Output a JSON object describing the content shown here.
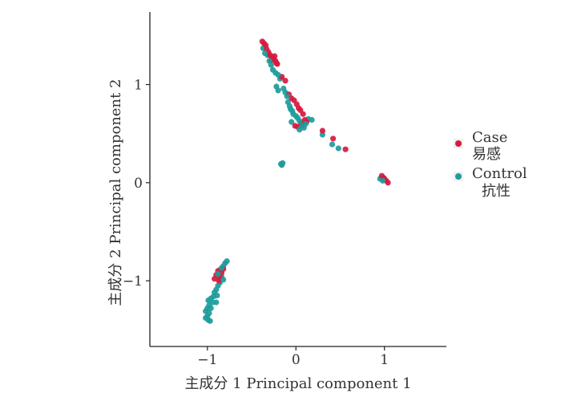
{
  "chart_data": {
    "type": "scatter",
    "xlabel": "主成分 1 Principal component 1",
    "ylabel": "主成分 2 Principal component 2",
    "xlim": [
      -1.65,
      1.7
    ],
    "ylim": [
      -1.67,
      1.74
    ],
    "x_ticks": [
      -1,
      0,
      1
    ],
    "y_ticks": [
      -1,
      0,
      1
    ],
    "x_tick_labels": [
      "−1",
      "0",
      "1"
    ],
    "y_tick_labels": [
      "−1",
      "0",
      "1"
    ],
    "grid": false,
    "legend_position": "right",
    "series": [
      {
        "name": "Case 易感",
        "legend_lines": [
          "Case",
          "易感"
        ],
        "color": "#d7193f",
        "points": [
          [
            -0.38,
            1.44
          ],
          [
            -0.36,
            1.42
          ],
          [
            -0.34,
            1.4
          ],
          [
            -0.33,
            1.36
          ],
          [
            -0.31,
            1.33
          ],
          [
            -0.29,
            1.3
          ],
          [
            -0.27,
            1.28
          ],
          [
            -0.25,
            1.26
          ],
          [
            -0.23,
            1.24
          ],
          [
            -0.22,
            1.22
          ],
          [
            -0.21,
            1.21
          ],
          [
            -0.24,
            1.29
          ],
          [
            -0.28,
            1.25
          ],
          [
            -0.16,
            1.08
          ],
          [
            -0.12,
            1.04
          ],
          [
            -0.08,
            0.9
          ],
          [
            -0.05,
            0.86
          ],
          [
            -0.02,
            0.84
          ],
          [
            0.01,
            0.8
          ],
          [
            0.03,
            0.76
          ],
          [
            0.05,
            0.74
          ],
          [
            0.08,
            0.7
          ],
          [
            -0.01,
            0.58
          ],
          [
            0.02,
            0.57
          ],
          [
            0.06,
            0.6
          ],
          [
            0.1,
            0.64
          ],
          [
            0.12,
            0.62
          ],
          [
            0.3,
            0.53
          ],
          [
            0.42,
            0.45
          ],
          [
            0.56,
            0.34
          ],
          [
            0.97,
            0.07
          ],
          [
            1.0,
            0.04
          ],
          [
            1.02,
            0.02
          ],
          [
            1.04,
            0.0
          ],
          [
            0.99,
            0.05
          ],
          [
            -0.9,
            -0.94
          ],
          [
            -0.88,
            -0.9
          ],
          [
            -0.86,
            -0.97
          ],
          [
            -0.84,
            -0.92
          ],
          [
            -0.82,
            -0.88
          ],
          [
            -0.87,
            -1.0
          ],
          [
            -0.92,
            -0.98
          ]
        ]
      },
      {
        "name": "Control 抗性",
        "legend_lines": [
          "Control",
          "抗性"
        ],
        "color": "#1d9c9a",
        "points": [
          [
            -0.37,
            1.37
          ],
          [
            -0.35,
            1.32
          ],
          [
            -0.32,
            1.3
          ],
          [
            -0.3,
            1.24
          ],
          [
            -0.28,
            1.2
          ],
          [
            -0.26,
            1.15
          ],
          [
            -0.23,
            1.12
          ],
          [
            -0.2,
            1.1
          ],
          [
            -0.18,
            1.06
          ],
          [
            -0.22,
            0.98
          ],
          [
            -0.2,
            0.94
          ],
          [
            -0.14,
            0.96
          ],
          [
            -0.12,
            0.92
          ],
          [
            -0.1,
            0.88
          ],
          [
            -0.09,
            0.82
          ],
          [
            -0.07,
            0.78
          ],
          [
            -0.06,
            0.75
          ],
          [
            -0.04,
            0.73
          ],
          [
            -0.03,
            0.7
          ],
          [
            0.0,
            0.68
          ],
          [
            0.02,
            0.66
          ],
          [
            0.04,
            0.63
          ],
          [
            0.06,
            0.61
          ],
          [
            0.07,
            0.58
          ],
          [
            0.09,
            0.56
          ],
          [
            0.11,
            0.6
          ],
          [
            0.14,
            0.65
          ],
          [
            0.18,
            0.64
          ],
          [
            -0.05,
            0.62
          ],
          [
            0.04,
            0.54
          ],
          [
            0.3,
            0.49
          ],
          [
            0.41,
            0.39
          ],
          [
            0.48,
            0.35
          ],
          [
            -0.17,
            0.19
          ],
          [
            -0.15,
            0.2
          ],
          [
            -0.16,
            0.18
          ],
          [
            0.95,
            0.04
          ],
          [
            0.98,
            0.02
          ],
          [
            -0.8,
            -0.82
          ],
          [
            -0.78,
            -0.8
          ],
          [
            -0.82,
            -0.85
          ],
          [
            -0.84,
            -0.87
          ],
          [
            -0.86,
            -0.89
          ],
          [
            -0.88,
            -0.93
          ],
          [
            -0.84,
            -0.96
          ],
          [
            -0.82,
            -0.99
          ],
          [
            -0.86,
            -1.02
          ],
          [
            -0.88,
            -1.05
          ],
          [
            -0.9,
            -1.09
          ],
          [
            -0.92,
            -1.12
          ],
          [
            -0.89,
            -1.15
          ],
          [
            -0.93,
            -1.16
          ],
          [
            -0.96,
            -1.18
          ],
          [
            -0.99,
            -1.2
          ],
          [
            -0.94,
            -1.22
          ],
          [
            -0.9,
            -1.22
          ],
          [
            -0.98,
            -1.25
          ],
          [
            -1.0,
            -1.28
          ],
          [
            -0.96,
            -1.28
          ],
          [
            -1.02,
            -1.31
          ],
          [
            -0.98,
            -1.33
          ],
          [
            -1.0,
            -1.36
          ],
          [
            -1.02,
            -1.38
          ],
          [
            -0.99,
            -1.4
          ],
          [
            -0.97,
            -1.41
          ]
        ]
      }
    ]
  }
}
